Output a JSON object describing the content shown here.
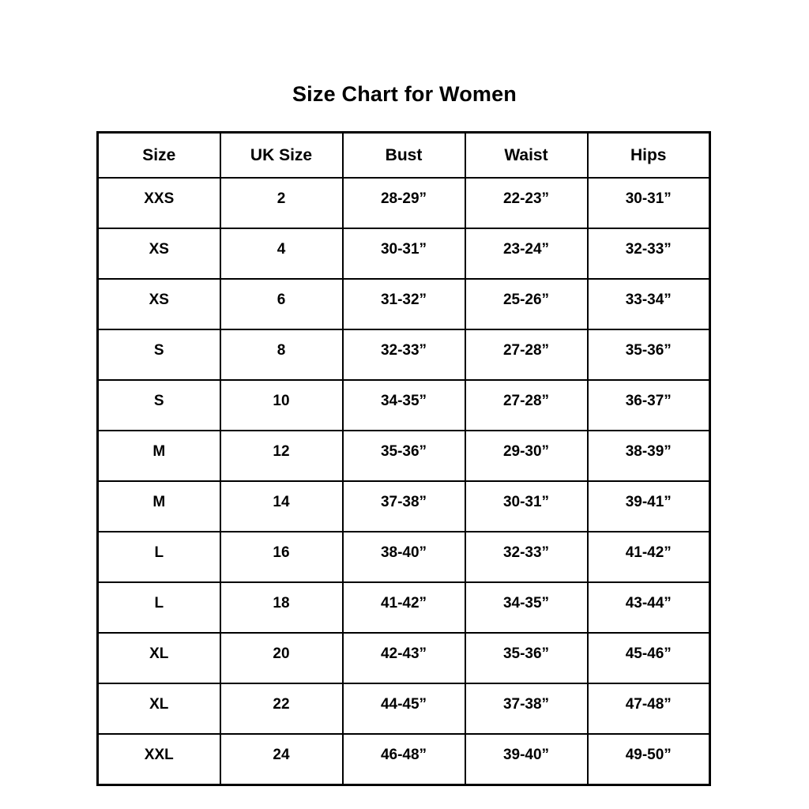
{
  "page": {
    "title": "Size Chart for Women"
  },
  "chart_data": {
    "type": "table",
    "title": "Size Chart for Women",
    "columns": [
      "Size",
      "UK Size",
      "Bust",
      "Waist",
      "Hips"
    ],
    "rows": [
      [
        "XXS",
        "2",
        "28-29”",
        "22-23”",
        "30-31”"
      ],
      [
        "XS",
        "4",
        "30-31”",
        "23-24”",
        "32-33”"
      ],
      [
        "XS",
        "6",
        "31-32”",
        "25-26”",
        "33-34”"
      ],
      [
        "S",
        "8",
        "32-33”",
        "27-28”",
        "35-36”"
      ],
      [
        "S",
        "10",
        "34-35”",
        "27-28”",
        "36-37”"
      ],
      [
        "M",
        "12",
        "35-36”",
        "29-30”",
        "38-39”"
      ],
      [
        "M",
        "14",
        "37-38”",
        "30-31”",
        "39-41”"
      ],
      [
        "L",
        "16",
        "38-40”",
        "32-33”",
        "41-42”"
      ],
      [
        "L",
        "18",
        "41-42”",
        "34-35”",
        "43-44”"
      ],
      [
        "XL",
        "20",
        "42-43”",
        "35-36”",
        "45-46”"
      ],
      [
        "XL",
        "22",
        "44-45”",
        "37-38”",
        "47-48”"
      ],
      [
        "XXL",
        "24",
        "46-48”",
        "39-40”",
        "49-50”"
      ]
    ],
    "layout": {
      "grid": true,
      "border_color": "#000000",
      "background_color": "#ffffff",
      "text_color": "#000000"
    }
  }
}
